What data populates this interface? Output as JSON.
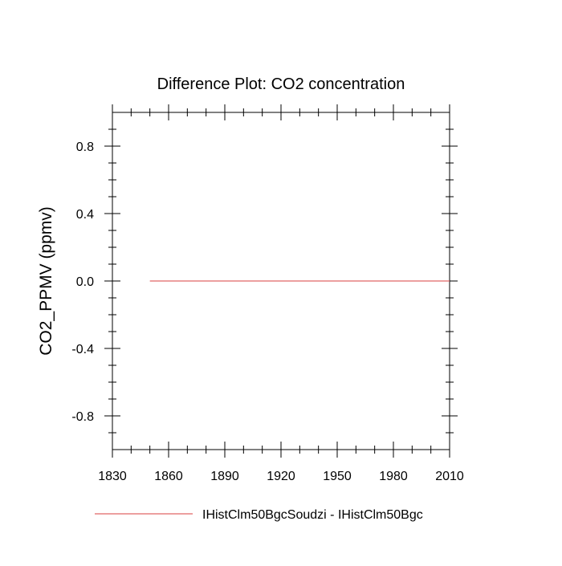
{
  "chart_data": {
    "type": "line",
    "title": "Difference Plot: CO2 concentration",
    "xlabel": "",
    "ylabel": "CO2_PPMV  (ppmv)",
    "xlim": [
      1830,
      2010
    ],
    "ylim": [
      -1.0,
      1.0
    ],
    "x_ticks": [
      1830,
      1860,
      1890,
      1920,
      1950,
      1980,
      2010
    ],
    "x_tick_labels": [
      "1830",
      "1860",
      "1890",
      "1920",
      "1950",
      "1980",
      "2010"
    ],
    "y_ticks": [
      0.8,
      0.4,
      0.0,
      -0.4,
      -0.8
    ],
    "y_tick_labels": [
      "0.8",
      "0.4",
      "0.0",
      "-0.4",
      "-0.8"
    ],
    "grid": false,
    "legend_position": "bottom",
    "series": [
      {
        "name": "IHistClm50BgcSoudzi - IHistClm50Bgc",
        "color": "#e06666",
        "x": [
          1850,
          1880,
          1910,
          1940,
          1970,
          2000,
          2014
        ],
        "y": [
          0.0,
          0.0,
          0.0,
          0.0,
          0.0,
          0.0,
          0.0
        ]
      }
    ]
  }
}
